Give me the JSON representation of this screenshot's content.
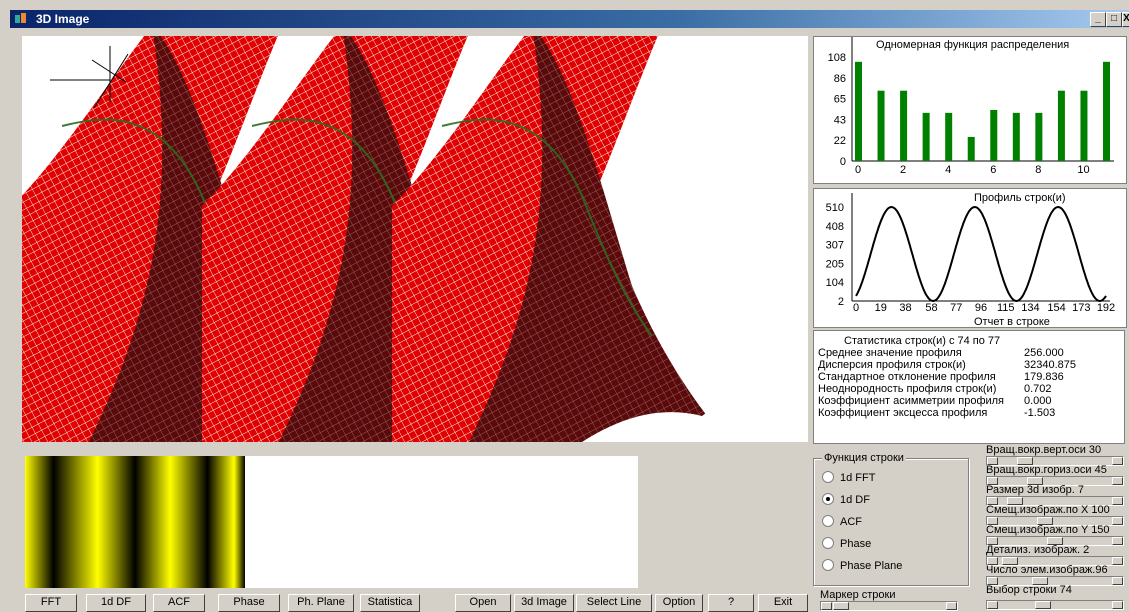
{
  "window": {
    "title": "3D Image",
    "min": "_",
    "max": "□",
    "close": "X"
  },
  "histogram": {
    "title": "Одномерная функция распределения",
    "chart_data": {
      "type": "bar",
      "x": [
        0,
        1,
        2,
        3,
        4,
        5,
        6,
        7,
        8,
        9,
        10,
        11
      ],
      "values": [
        103,
        73,
        73,
        50,
        50,
        25,
        53,
        50,
        50,
        73,
        73,
        103
      ],
      "yticks": [
        "0",
        "22",
        "43",
        "65",
        "86",
        "108"
      ],
      "xticks": [
        "0",
        "2",
        "4",
        "6",
        "8",
        "10"
      ],
      "ylim": [
        0,
        108
      ],
      "color": "#008000"
    }
  },
  "profile": {
    "title": "Профиль строк(и)",
    "xlabel": "Отчет в строке",
    "chart_data": {
      "type": "line",
      "yticks": [
        "2",
        "104",
        "205",
        "307",
        "408",
        "510"
      ],
      "xticks": [
        "0",
        "19",
        "38",
        "58",
        "77",
        "96",
        "115",
        "134",
        "154",
        "173",
        "192"
      ],
      "xlim": [
        0,
        192
      ],
      "ylim": [
        2,
        510
      ],
      "periods": 3
    }
  },
  "stats": {
    "title": "Статистика строк(и) с 74 по 77",
    "mean_label": "Среднее      значение      профиля",
    "mean_value": "256.000",
    "disp_label": "Дисперсия    профиля     строк(и)",
    "disp_value": "32340.875",
    "std_label": "Стандартное отклонение профиля",
    "std_value": "179.836",
    "nonuni_label": "Неоднородность профиля строк(и)",
    "nonuni_value": "0.702",
    "skew_label": "Коэффициент асимметрии профиля",
    "skew_value": "0.000",
    "kurt_label": "Коэффициент  эксцесса  профиля",
    "kurt_value": "-1.503"
  },
  "function_group": {
    "label": "Функция строки",
    "options": [
      "1d FFT",
      "1d DF",
      "ACF",
      "Phase",
      "Phase Plane"
    ],
    "selected": "1d DF"
  },
  "sliders": {
    "vert": "Вращ.вокр.верт.оси 30",
    "horiz": "Вращ.вокр.гориз.оси 45",
    "size": "Размер 3d изобр. 7",
    "shiftx": "Смещ.изображ.по X 100",
    "shifty": "Смещ.изображ.по Y 150",
    "detail": "Детализ. изображ. 2",
    "count": "Число элем.изображ.96",
    "row": "Выбор строки  74"
  },
  "marker_label": "Маркер строки",
  "buttons": {
    "fft": "FFT",
    "df": "1d DF",
    "acf": "ACF",
    "phase": "Phase",
    "phplane": "Ph. Plane",
    "stats": "Statistica",
    "open": "Open",
    "image3d": "3d Image",
    "selectline": "Select Line",
    "option": "Option",
    "help": "?",
    "exit": "Exit"
  },
  "colors": {
    "surface": "#e00000",
    "bar": "#008000",
    "stripe": "#ffff00"
  }
}
